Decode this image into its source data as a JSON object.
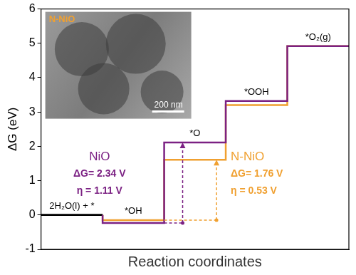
{
  "chart_data": {
    "type": "step",
    "y_label": "ΔG (eV)",
    "x_label": "Reaction coordinates",
    "categories": [
      "2H₂O(l) + *",
      "*OH",
      "*O",
      "*OOH",
      "*O₂(g)"
    ],
    "series": [
      {
        "name": "NiO",
        "color": "#7b2183",
        "values": [
          0,
          -0.23,
          2.11,
          3.32,
          4.92
        ],
        "annotation": [
          "ΔG= 2.34 V",
          "η = 1.11 V"
        ]
      },
      {
        "name": "N-NiO",
        "color": "#f0a030",
        "values": [
          0,
          -0.15,
          1.61,
          3.2,
          4.92
        ],
        "annotation": [
          "ΔG= 1.76 V",
          "η = 0.53 V"
        ]
      }
    ],
    "ylim": [
      -1,
      6
    ],
    "yticks": [
      -1,
      0,
      1,
      2,
      3,
      4,
      5,
      6
    ],
    "grid": false,
    "tick_labels": "y",
    "inset": {
      "label": "N-NiO",
      "scale_bar": "200 nm"
    }
  }
}
